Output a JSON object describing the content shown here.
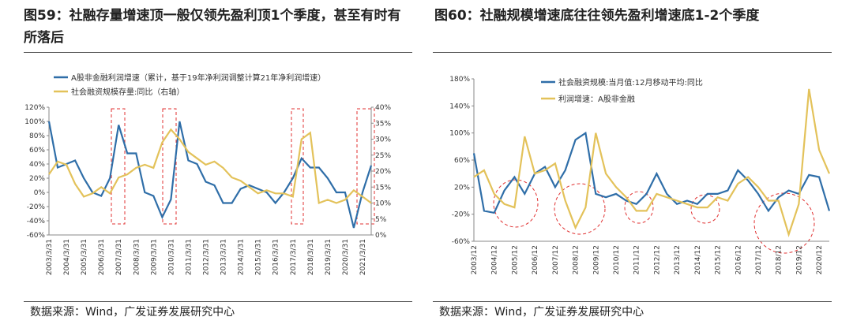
{
  "chart_data": [
    {
      "type": "line",
      "title": "图59：社融存量增速顶一般仅领先盈利顶1个季度，甚至有时有所落后",
      "source": "数据来源：Wind，广发证券发展研究中心",
      "categories": [
        "2003/3/31",
        null,
        "2004/3/31",
        null,
        "2005/3/31",
        null,
        "2006/3/31",
        null,
        "2007/3/31",
        null,
        "2008/3/31",
        null,
        "2009/3/31",
        null,
        "2010/3/31",
        null,
        "2011/3/31",
        null,
        "2012/3/31",
        null,
        "2013/3/31",
        null,
        "2014/3/31",
        null,
        "2015/3/31",
        null,
        "2016/3/31",
        null,
        "2017/3/31",
        null,
        "2018/3/31",
        null,
        "2019/3/31",
        null,
        "2020/3/31",
        null,
        "2021/3/31",
        null
      ],
      "series": [
        {
          "name": "A股非金融利润增速（累计，基于19年净利润调整计算21年净利润增速）",
          "color": "#2f6ea8",
          "axis": "y",
          "values": [
            100,
            35,
            40,
            45,
            20,
            0,
            -5,
            20,
            95,
            55,
            55,
            0,
            -5,
            -35,
            -10,
            100,
            45,
            40,
            15,
            10,
            -15,
            -15,
            5,
            10,
            5,
            0,
            -15,
            0,
            20,
            48,
            35,
            35,
            20,
            0,
            0,
            -50,
            0,
            38
          ]
        },
        {
          "name": "社会融资规模存量:同比（右轴）",
          "color": "#e3c25a",
          "axis": "y2",
          "values": [
            19,
            23,
            22,
            16,
            12,
            13,
            15,
            13,
            18,
            19,
            21,
            22,
            21,
            29,
            33,
            30,
            26,
            24,
            22,
            23,
            21,
            18,
            17,
            15,
            13,
            14,
            13,
            13,
            12,
            30,
            32,
            10,
            11,
            10,
            11,
            14,
            12,
            10
          ]
        }
      ],
      "ylim": [
        -60,
        120
      ],
      "yticks": [
        {
          "value": -60,
          "label": "-60%"
        },
        {
          "value": -40,
          "label": "-40%"
        },
        {
          "value": -20,
          "label": "-20%"
        },
        {
          "value": 0,
          "label": "0%"
        },
        {
          "value": 20,
          "label": "20%"
        },
        {
          "value": 40,
          "label": "40%"
        },
        {
          "value": 60,
          "label": "60%"
        },
        {
          "value": 80,
          "label": "80%"
        },
        {
          "value": 100,
          "label": "100%"
        },
        {
          "value": 120,
          "label": "120%"
        }
      ],
      "y2lim": [
        0,
        40
      ],
      "y2ticks": [
        {
          "value": 0,
          "label": "0%"
        },
        {
          "value": 5,
          "label": "5%"
        },
        {
          "value": 10,
          "label": "10%"
        },
        {
          "value": 15,
          "label": "15%"
        },
        {
          "value": 20,
          "label": "20%"
        },
        {
          "value": 25,
          "label": "25%"
        },
        {
          "value": 30,
          "label": "30%"
        },
        {
          "value": 35,
          "label": "35%"
        },
        {
          "value": 40,
          "label": "40%"
        }
      ]
    },
    {
      "type": "line",
      "title": "图60：社融规模增速底往往领先盈利增速底1-2个季度",
      "source": "数据来源：Wind，广发证券发展研究中心",
      "categories": [
        "2003/12",
        null,
        "2004/12",
        null,
        "2005/12",
        null,
        "2006/12",
        null,
        "2007/12",
        null,
        "2008/12",
        null,
        "2009/12",
        null,
        "2010/12",
        null,
        "2011/12",
        null,
        "2012/12",
        null,
        "2013/12",
        null,
        "2014/12",
        null,
        "2015/12",
        null,
        "2016/12",
        null,
        "2017/12",
        null,
        "2018/12",
        null,
        "2019/12",
        null,
        "2020/12",
        null
      ],
      "series": [
        {
          "name": "社会融资规模:当月值:12月移动平均:同比",
          "color": "#2f6ea8",
          "axis": "y",
          "values": [
            70,
            -15,
            -18,
            15,
            35,
            10,
            40,
            50,
            20,
            45,
            90,
            100,
            10,
            5,
            10,
            0,
            -5,
            10,
            40,
            10,
            -5,
            0,
            -5,
            10,
            10,
            15,
            45,
            30,
            10,
            -15,
            5,
            15,
            10,
            38,
            35,
            -15
          ]
        },
        {
          "name": "利润增速：A股非金融",
          "color": "#e3c25a",
          "axis": "y",
          "values": [
            35,
            45,
            10,
            -5,
            -10,
            95,
            40,
            45,
            55,
            0,
            -40,
            -10,
            100,
            40,
            20,
            5,
            -15,
            -15,
            10,
            5,
            0,
            -5,
            -10,
            -10,
            5,
            0,
            25,
            35,
            20,
            0,
            0,
            -50,
            -5,
            165,
            75,
            40
          ]
        }
      ],
      "ylim": [
        -60,
        180
      ],
      "yticks": [
        {
          "value": -60,
          "label": "-60%"
        },
        {
          "value": -20,
          "label": "-20%"
        },
        {
          "value": 20,
          "label": "20%"
        },
        {
          "value": 60,
          "label": "60%"
        },
        {
          "value": 100,
          "label": "100%"
        },
        {
          "value": 140,
          "label": "140%"
        },
        {
          "value": 180,
          "label": "180%"
        }
      ]
    }
  ]
}
